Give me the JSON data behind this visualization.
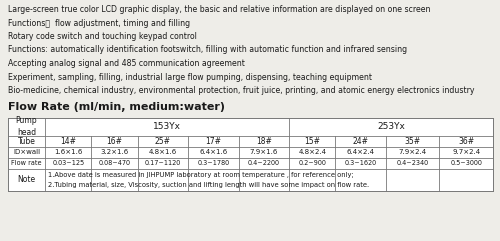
{
  "bg_color": "#eeede8",
  "text_color": "#1a1a1a",
  "bullet_lines": [
    "Large-screen true color LCD graphic display, the basic and relative information are displayed on one screen",
    "Functions：  flow adjustment, timing and filling",
    "Rotary code switch and touching keypad control",
    "Functions: automatically identification footswitch, filling with automatic function and infrared sensing",
    "Accepting analog signal and 485 communication agreement",
    "Experiment, sampling, filling, industrial large flow pumping, dispensing, teaching equipment",
    "Bio-medicine, chemical industry, environmental protection, fruit juice, printing, and atomic energy electronics industry"
  ],
  "section_title": "Flow Rate (ml/min, medium:water)",
  "tube_labels": [
    "Tube",
    "14#",
    "16#",
    "25#",
    "17#",
    "18#",
    "15#",
    "24#",
    "35#",
    "36#"
  ],
  "id_labels": [
    "ID×wall",
    "1.6×1.6",
    "3.2×1.6",
    "4.8×1.6",
    "6.4×1.6",
    "7.9×1.6",
    "4.8×2.4",
    "6.4×2.4",
    "7.9×2.4",
    "9.7×2.4"
  ],
  "flow_labels": [
    "Flow rate",
    "0.03~125",
    "0.08~470",
    "0.17~1120",
    "0.3~1780",
    "0.4~2200",
    "0.2~900",
    "0.3~1620",
    "0.4~2340",
    "0.5~3000"
  ],
  "note_label": "Note",
  "note_line1": "1.Above date is measured in JIHPUMP laboratory at room temperature , for reference only;",
  "note_line2": "2.Tubing material, size, Viscosity, suction and lifting length will have some impact on flow rate.",
  "line_color": "#777777",
  "table_bg": "#ffffff"
}
